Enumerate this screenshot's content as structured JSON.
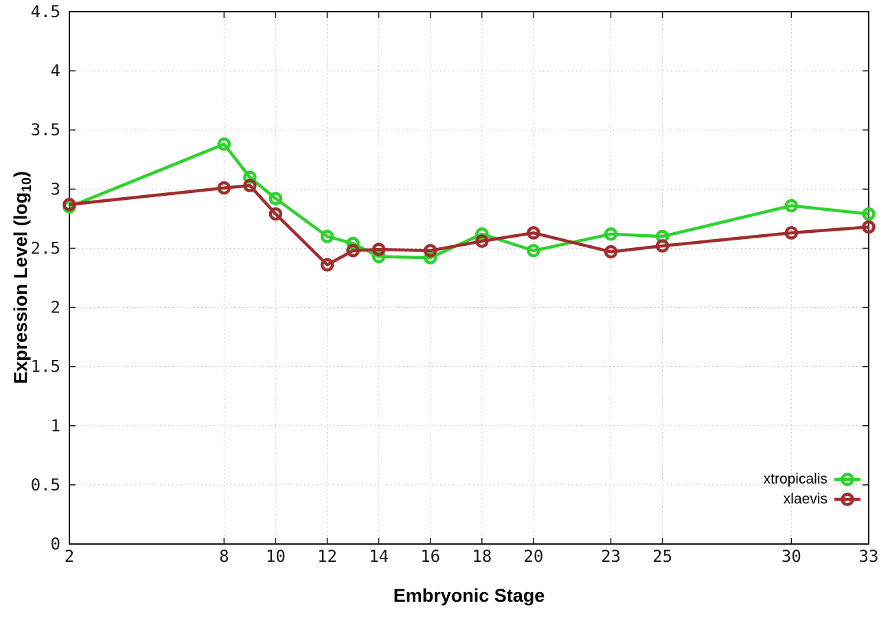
{
  "colors": {
    "background": "#ffffff",
    "border": "#181818",
    "grid": "#b5b5b5",
    "tick_text": "#1a1a1a",
    "xtropicalis_green": "#2dd22d",
    "xlaevis_red": "#a02d2d"
  },
  "chart_data": {
    "type": "line",
    "title": "",
    "xlabel": "Embryonic Stage",
    "ylabel": "Expression Level (log10)",
    "ylabel_parts": {
      "prefix": "Expression Level (log",
      "sub": "10",
      "suffix": ")"
    },
    "xlim": [
      2,
      33
    ],
    "ylim": [
      0,
      4.5
    ],
    "grid": true,
    "legend_position": "bottom-right-inside",
    "x": [
      2,
      8,
      9,
      10,
      12,
      13,
      14,
      16,
      18,
      20,
      23,
      25,
      30,
      33
    ],
    "xticks": [
      2,
      8,
      10,
      12,
      14,
      16,
      18,
      20,
      23,
      25,
      30,
      33
    ],
    "yticks": [
      "0",
      "0.5",
      "1",
      "1.5",
      "2",
      "2.5",
      "3",
      "3.5",
      "4",
      "4.5"
    ],
    "series": [
      {
        "name": "xtropicalis",
        "color": "#2dd22d",
        "marker": "open-circle",
        "values": [
          2.85,
          3.38,
          3.1,
          2.92,
          2.6,
          2.54,
          2.43,
          2.42,
          2.62,
          2.48,
          2.62,
          2.6,
          2.86,
          2.79
        ]
      },
      {
        "name": "xlaevis",
        "color": "#a02d2d",
        "marker": "open-circle",
        "values": [
          2.87,
          3.01,
          3.03,
          2.79,
          2.36,
          2.48,
          2.49,
          2.48,
          2.56,
          2.63,
          2.47,
          2.52,
          2.63,
          2.68
        ]
      }
    ]
  }
}
